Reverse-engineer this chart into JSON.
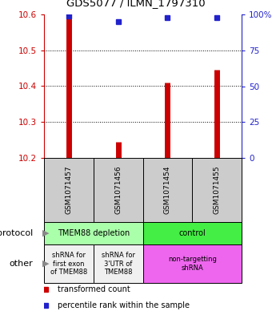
{
  "title": "GDS5077 / ILMN_1797310",
  "samples": [
    "GSM1071457",
    "GSM1071456",
    "GSM1071454",
    "GSM1071455"
  ],
  "transformed_counts": [
    10.595,
    10.245,
    10.41,
    10.445
  ],
  "percentile_ranks": [
    99,
    95,
    98,
    98
  ],
  "ylim": [
    10.2,
    10.6
  ],
  "y_ticks": [
    10.2,
    10.3,
    10.4,
    10.5,
    10.6
  ],
  "right_yticks": [
    0,
    25,
    50,
    75,
    100
  ],
  "right_ytick_labels": [
    "0",
    "25",
    "50",
    "75",
    "100%"
  ],
  "bar_color": "#cc0000",
  "dot_color": "#2222cc",
  "protocol_row": [
    {
      "label": "TMEM88 depletion",
      "color": "#aaffaa",
      "span": [
        0,
        2
      ]
    },
    {
      "label": "control",
      "color": "#44ee44",
      "span": [
        2,
        4
      ]
    }
  ],
  "other_row": [
    {
      "label": "shRNA for\nfirst exon\nof TMEM88",
      "color": "#f0f0f0",
      "span": [
        0,
        1
      ]
    },
    {
      "label": "shRNA for\n3'UTR of\nTMEM88",
      "color": "#f0f0f0",
      "span": [
        1,
        2
      ]
    },
    {
      "label": "non-targetting\nshRNA",
      "color": "#ee66ee",
      "span": [
        2,
        4
      ]
    }
  ],
  "legend_items": [
    {
      "color": "#cc0000",
      "label": "transformed count"
    },
    {
      "color": "#2222cc",
      "label": "percentile rank within the sample"
    }
  ],
  "label_protocol": "protocol",
  "label_other": "other",
  "bg_color": "#ffffff",
  "sample_bg": "#cccccc",
  "bar_linewidth": 5
}
